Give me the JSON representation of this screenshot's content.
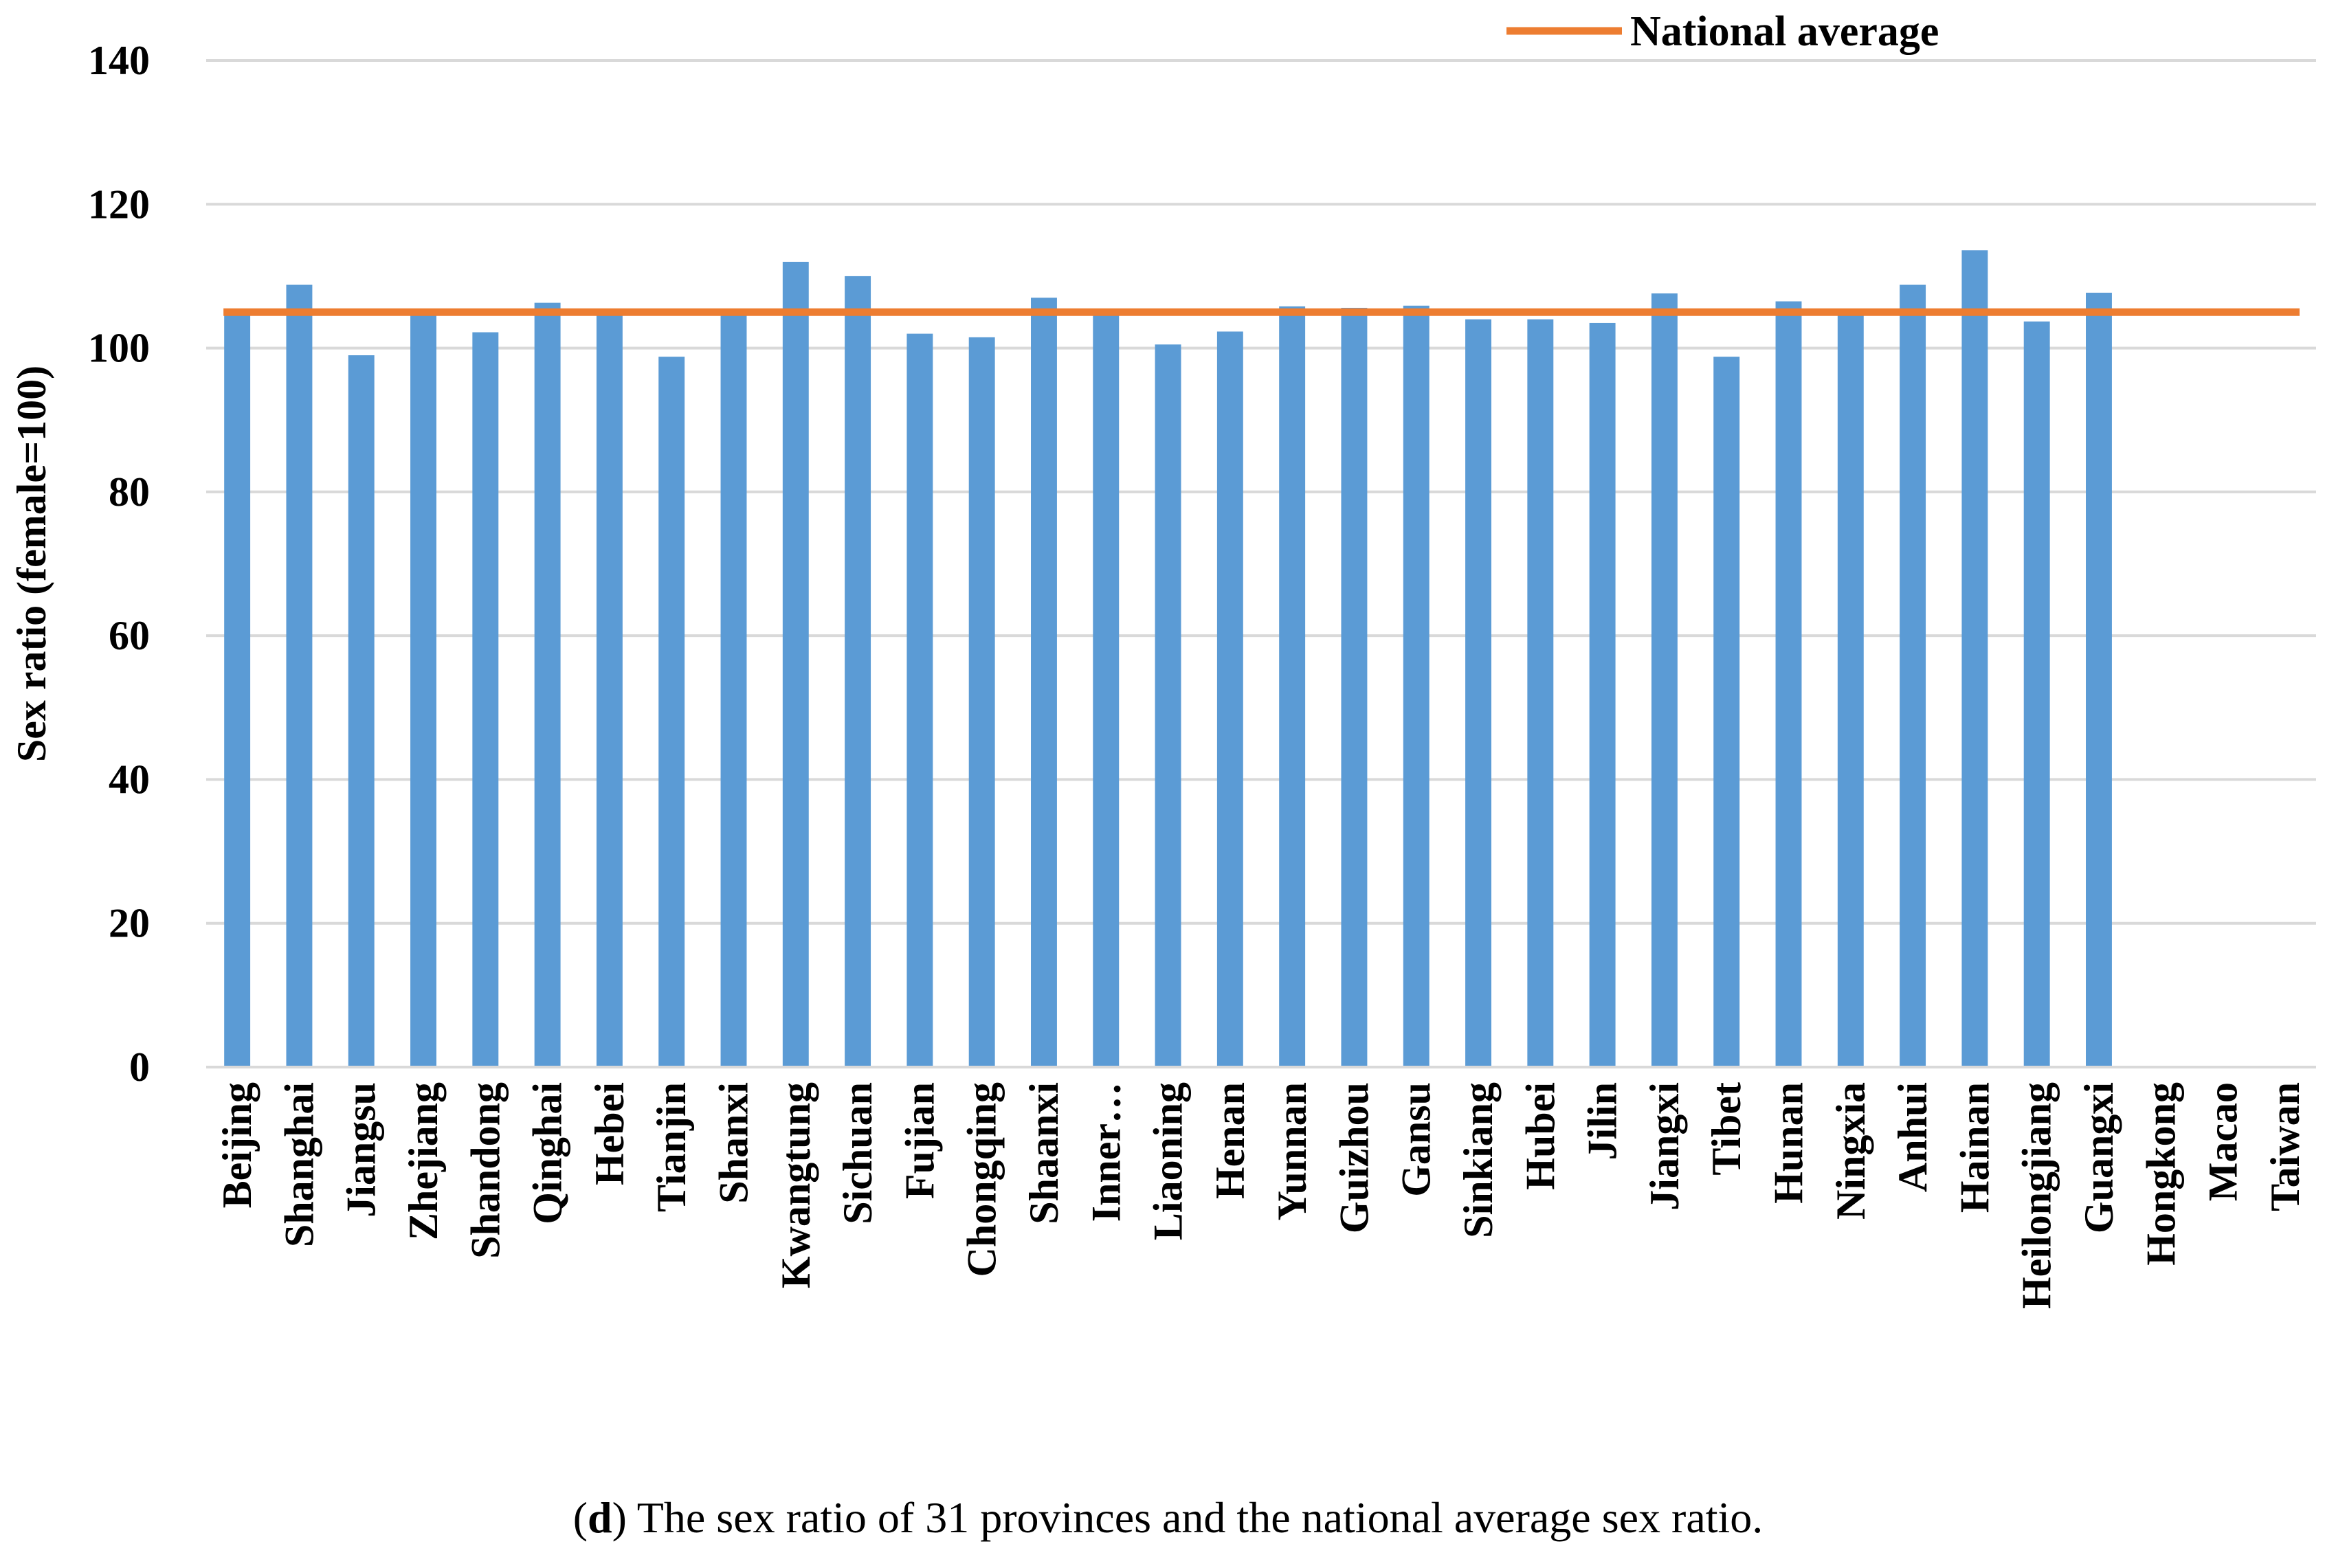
{
  "chart_data": {
    "type": "bar",
    "title": "",
    "xlabel": "",
    "ylabel": "Sex ratio (female=100)",
    "ylim": [
      0,
      140
    ],
    "yticks": [
      0,
      20,
      40,
      60,
      80,
      100,
      120,
      140
    ],
    "grid": true,
    "categories": [
      "Beijing",
      "Shanghai",
      "Jiangsu",
      "Zhejiang",
      "Shandong",
      "Qinghai",
      "Hebei",
      "Tianjin",
      "Shanxi",
      "Kwangtung",
      "Sichuan",
      "Fujian",
      "Chongqing",
      "Shaanxi",
      "Inner…",
      "Liaoning",
      "Henan",
      "Yunnan",
      "Guizhou",
      "Gansu",
      "Sinkiang",
      "Hubei",
      "Jilin",
      "Jiangxi",
      "Tibet",
      "Hunan",
      "Ningxia",
      "Anhui",
      "Hainan",
      "Heilongjiang",
      "Guangxi",
      "Hongkong",
      "Macao",
      "Taiwan"
    ],
    "series": [
      {
        "name": "Sex ratio",
        "type": "bar",
        "color": "#5B9BD5",
        "values": [
          105.2,
          108.8,
          99.0,
          105.0,
          102.2,
          106.3,
          105.0,
          98.8,
          105.0,
          112.0,
          110.0,
          102.0,
          101.5,
          107.0,
          105.0,
          100.5,
          102.3,
          105.8,
          105.6,
          105.9,
          104.0,
          104.0,
          103.5,
          107.6,
          98.8,
          106.5,
          105.0,
          108.8,
          113.6,
          103.7,
          107.7,
          null,
          null,
          null
        ]
      },
      {
        "name": "National average",
        "type": "line",
        "color": "#ED7D31",
        "value": 105.0
      }
    ],
    "legend": {
      "position": "top-right",
      "entries": [
        "National average"
      ]
    }
  },
  "caption": {
    "prefix": "(",
    "letter": "d",
    "text": ") The sex ratio of 31 provinces and the national average sex ratio."
  }
}
